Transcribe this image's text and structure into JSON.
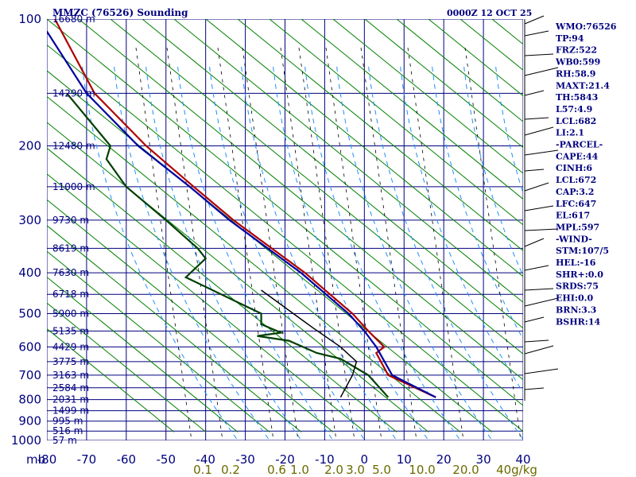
{
  "header": {
    "station": "MMZC (76526) Sounding",
    "time": "0000Z 12 OCT 25"
  },
  "chart_data": {
    "type": "line",
    "kind": "skew-T log-P sounding",
    "y_axis": {
      "unit_label": "mb",
      "scale": "log",
      "range": [
        1000,
        100
      ],
      "ticks": [
        100,
        200,
        300,
        400,
        500,
        600,
        700,
        800,
        900,
        1000
      ]
    },
    "x_axis": {
      "ticks": [
        -80,
        -70,
        -60,
        -50,
        -40,
        -30,
        -20,
        -10,
        0,
        10,
        20,
        30,
        40
      ]
    },
    "mixing_ratio_labels": [
      "0.1",
      "0.2",
      "0.6",
      "1.0",
      "2.0",
      "3.0",
      "5.0",
      "10.0",
      "20.0",
      "40g/kg"
    ],
    "height_labels": [
      {
        "p": 100,
        "label": "16680 m"
      },
      {
        "p": 150,
        "label": "14290 m"
      },
      {
        "p": 200,
        "label": "12480 m"
      },
      {
        "p": 250,
        "label": "11000 m"
      },
      {
        "p": 300,
        "label": "9730 m"
      },
      {
        "p": 350,
        "label": "8619 m"
      },
      {
        "p": 400,
        "label": "7630 m"
      },
      {
        "p": 450,
        "label": "6718 m"
      },
      {
        "p": 500,
        "label": "5900 m"
      },
      {
        "p": 550,
        "label": "5135 m"
      },
      {
        "p": 600,
        "label": "4429 m"
      },
      {
        "p": 650,
        "label": "3775 m"
      },
      {
        "p": 700,
        "label": "3163 m"
      },
      {
        "p": 750,
        "label": "2584 m"
      },
      {
        "p": 800,
        "label": "2031 m"
      },
      {
        "p": 850,
        "label": "1499 m"
      },
      {
        "p": 900,
        "label": "995 m"
      },
      {
        "p": 950,
        "label": "516 m"
      },
      {
        "p": 1000,
        "label": "57 m"
      }
    ],
    "series": [
      {
        "color": "#b00000",
        "points": [
          [
            100,
            -78
          ],
          [
            150,
            -68
          ],
          [
            200,
            -55
          ],
          [
            250,
            -43
          ],
          [
            300,
            -33
          ],
          [
            400,
            -15
          ],
          [
            500,
            -3
          ],
          [
            550,
            1
          ],
          [
            600,
            5
          ],
          [
            620,
            3
          ],
          [
            700,
            6
          ],
          [
            790,
            18
          ]
        ]
      },
      {
        "color": "#0000a0",
        "points": [
          [
            100,
            -82
          ],
          [
            150,
            -70
          ],
          [
            200,
            -57
          ],
          [
            250,
            -44
          ],
          [
            300,
            -34
          ],
          [
            400,
            -16
          ],
          [
            500,
            -4
          ],
          [
            550,
            0
          ],
          [
            600,
            3
          ],
          [
            700,
            7
          ],
          [
            790,
            18
          ]
        ]
      },
      {
        "color": "#004000",
        "points": [
          [
            150,
            -75
          ],
          [
            200,
            -64
          ],
          [
            215,
            -65
          ],
          [
            250,
            -60
          ],
          [
            300,
            -50
          ],
          [
            350,
            -42
          ],
          [
            370,
            -40
          ],
          [
            410,
            -45
          ],
          [
            500,
            -26
          ],
          [
            530,
            -26
          ],
          [
            555,
            -21
          ],
          [
            565,
            -27
          ],
          [
            580,
            -19
          ],
          [
            620,
            -12
          ],
          [
            640,
            -6
          ],
          [
            700,
            1
          ],
          [
            790,
            6
          ]
        ]
      },
      {
        "color": "#000000",
        "points": [
          [
            440,
            -26
          ],
          [
            540,
            -13
          ],
          [
            600,
            -6
          ],
          [
            650,
            -2
          ],
          [
            700,
            -3
          ],
          [
            790,
            -6
          ]
        ]
      }
    ],
    "isotherm_color": "#00007f",
    "dry_adiabat_color": "#008000",
    "moist_adiabat_color": "#1e90ff",
    "mixing_ratio_color": "#000000"
  },
  "indices": [
    "WMO:76526",
    "TP:94",
    "FRZ:522",
    "WB0:599",
    "RH:58.9",
    "MAXT:21.4",
    "TH:5843",
    "L57:4.9",
    "LCL:682",
    "LI:2.1",
    "-PARCEL-",
    "CAPE:44",
    "CINH:6",
    "LCL:672",
    "CAP:3.2",
    "LFC:647",
    "EL:617",
    "MPL:597",
    "-WIND-",
    "STM:107/5",
    "HEL:-16",
    "SHR+:0.0",
    "SRDS:75",
    "EHI:0.0",
    "BRN:3.3",
    "BSHR:14"
  ]
}
